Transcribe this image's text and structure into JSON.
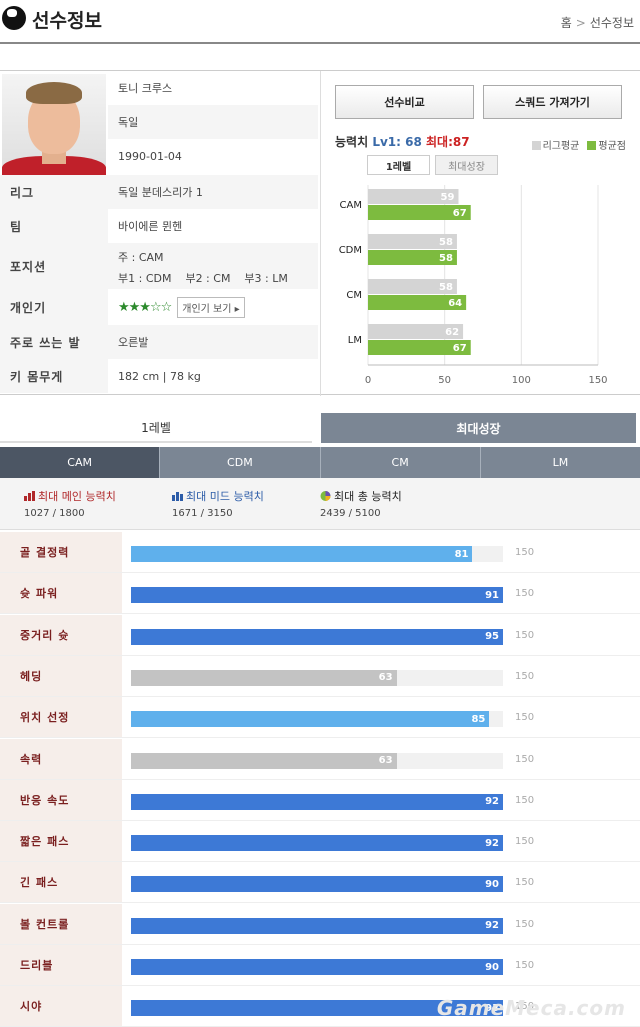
{
  "header": {
    "title": "선수정보",
    "crumb_home": "홈",
    "crumb_current": "선수정보"
  },
  "player": {
    "name": "토니 크루스",
    "nation": "독일",
    "birth": "1990-01-04",
    "rows": [
      {
        "label": "리그",
        "value": "독일 분데스리가 1"
      },
      {
        "label": "팀",
        "value": "바이에른 뮌헨"
      },
      {
        "label": "포지션",
        "value": ""
      },
      {
        "label": "개인기",
        "value": ""
      },
      {
        "label": "주로 쓰는 발",
        "value": "오른발"
      },
      {
        "label": "키 몸무게",
        "value": "182 cm | 78 kg"
      }
    ],
    "position_main": "주 : CAM",
    "position_subs": "부1 : CDM    부2 : CM    부3 : LM",
    "skill_stars": 3,
    "skill_button": "개인기 보기 ▸"
  },
  "buttons": {
    "compare": "선수비교",
    "squad": "스쿼드 가져가기"
  },
  "ability": {
    "title": "능력치",
    "level": "Lv1: 68",
    "max": "최대:87",
    "legend_avg": "리그평균",
    "legend_mine": "평균점",
    "toggle_level1": "1레벨",
    "toggle_max": "최대성장"
  },
  "chart_data": {
    "type": "bar",
    "orientation": "horizontal",
    "categories": [
      "CAM",
      "CDM",
      "CM",
      "LM"
    ],
    "series": [
      {
        "name": "리그평균",
        "values": [
          59,
          58,
          58,
          62
        ]
      },
      {
        "name": "평균점",
        "values": [
          67,
          58,
          64,
          67
        ]
      }
    ],
    "xlim": [
      0,
      150
    ],
    "xticks": [
      "0",
      "50",
      "100",
      "150"
    ],
    "colors": {
      "league": "#d4d4d4",
      "player": "#7dbb3f"
    }
  },
  "tabs": {
    "level1": "1레벨",
    "max_growth": "최대성장"
  },
  "position_tabs": [
    "CAM",
    "CDM",
    "CM",
    "LM"
  ],
  "summary": {
    "main": {
      "label": "최대 메인 능력치",
      "value": "1027 / 1800"
    },
    "mid": {
      "label": "최대 미드 능력치",
      "value": "1671 / 3150"
    },
    "total": {
      "label": "최대 총 능력치",
      "value": "2439 / 5100"
    }
  },
  "stats_max": "150",
  "stats": [
    {
      "label": "골 결정력",
      "value": 81,
      "color": "#5fb0ec"
    },
    {
      "label": "슛 파워",
      "value": 91,
      "color": "#3d79d6"
    },
    {
      "label": "중거리 슛",
      "value": 95,
      "color": "#3d79d6"
    },
    {
      "label": "헤딩",
      "value": 63,
      "color": "#c3c3c3"
    },
    {
      "label": "위치 선정",
      "value": 85,
      "color": "#5fb0ec"
    },
    {
      "label": "속력",
      "value": 63,
      "color": "#c3c3c3"
    },
    {
      "label": "반응 속도",
      "value": 92,
      "color": "#3d79d6"
    },
    {
      "label": "짧은 패스",
      "value": 92,
      "color": "#3d79d6"
    },
    {
      "label": "긴 패스",
      "value": 90,
      "color": "#3d79d6"
    },
    {
      "label": "볼 컨트롤",
      "value": 92,
      "color": "#3d79d6"
    },
    {
      "label": "드리블",
      "value": 90,
      "color": "#3d79d6"
    },
    {
      "label": "시야",
      "value": 93,
      "color": "#3d79d6"
    }
  ],
  "watermark": "GameMeca.com"
}
